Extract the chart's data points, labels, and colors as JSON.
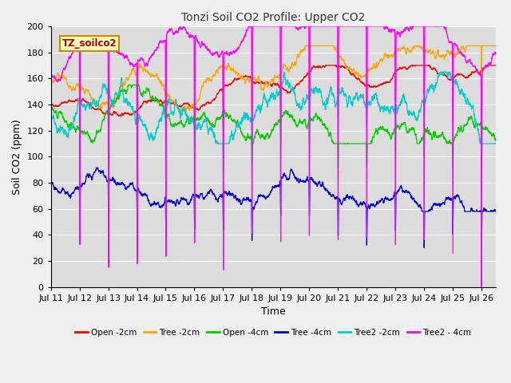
{
  "title": "Tonzi Soil CO2 Profile: Upper CO2",
  "xlabel": "Time",
  "ylabel": "Soil CO2 (ppm)",
  "legend_label": "TZ_soilco2",
  "ylim": [
    0,
    200
  ],
  "x_tick_labels": [
    "Jul 11",
    "Jul 12",
    "Jul 13",
    "Jul 14",
    "Jul 15",
    "Jul 16",
    "Jul 17",
    "Jul 18",
    "Jul 19",
    "Jul 20",
    "Jul 21",
    "Jul 22",
    "Jul 23",
    "Jul 24",
    "Jul 25",
    "Jul 26"
  ],
  "series": [
    {
      "name": "Open -2cm",
      "color": "#ff0000"
    },
    {
      "name": "Tree -2cm",
      "color": "#ffa500"
    },
    {
      "name": "Open -4cm",
      "color": "#00cc00"
    },
    {
      "name": "Tree -4cm",
      "color": "#0000cc"
    },
    {
      "name": "Tree2 -2cm",
      "color": "#00cccc"
    },
    {
      "name": "Tree2 - 4cm",
      "color": "#ff00ff"
    }
  ],
  "bg_color": "#dcdcdc",
  "grid_color": "#ffffff",
  "fig_bg": "#f0f0f0",
  "n_points": 3000
}
